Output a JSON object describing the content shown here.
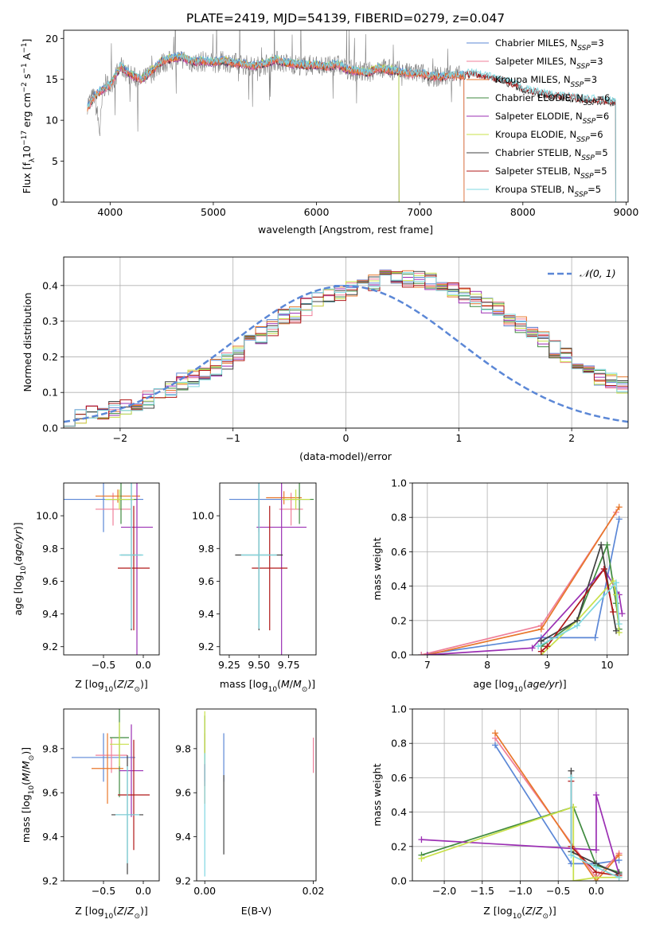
{
  "figure": {
    "title": "PLATE=2419, MJD=54139, FIBERID=0279, z=0.047"
  },
  "colors": {
    "Chabrier MILES": "#5b87d6",
    "Salpeter MILES": "#ef7f99",
    "Kroupa MILES": "#e8772b",
    "Chabrier ELODIE": "#3f8a3f",
    "Salpeter ELODIE": "#9b2fb3",
    "Kroupa ELODIE": "#c8e04a",
    "Chabrier STELIB": "#404040",
    "Salpeter STELIB": "#b01818",
    "Kroupa STELIB": "#7fd8e0"
  },
  "legend_spectrum": [
    {
      "model": "Chabrier MILES",
      "label": "Chabrier MILES, N",
      "sub": "SSP",
      "tail": "=3"
    },
    {
      "model": "Salpeter MILES",
      "label": "Salpeter MILES, N",
      "sub": "SSP",
      "tail": "=3"
    },
    {
      "model": "Kroupa MILES",
      "label": "Kroupa MILES, N",
      "sub": "SSP",
      "tail": "=3"
    },
    {
      "model": "Chabrier ELODIE",
      "label": "Chabrier ELODIE, N",
      "sub": "SSP",
      "tail": "=6"
    },
    {
      "model": "Salpeter ELODIE",
      "label": "Salpeter ELODIE, N",
      "sub": "SSP",
      "tail": "=6"
    },
    {
      "model": "Kroupa ELODIE",
      "label": "Kroupa ELODIE, N",
      "sub": "SSP",
      "tail": "=6"
    },
    {
      "model": "Chabrier STELIB",
      "label": "Chabrier STELIB, N",
      "sub": "SSP",
      "tail": "=5"
    },
    {
      "model": "Salpeter STELIB",
      "label": "Salpeter STELIB, N",
      "sub": "SSP",
      "tail": "=5"
    },
    {
      "model": "Kroupa STELIB",
      "label": "Kroupa STELIB, N",
      "sub": "SSP",
      "tail": "=5"
    }
  ],
  "chart_data": [
    {
      "id": "spectrum",
      "type": "line",
      "xlabel": "wavelength [Angstrom, rest frame]",
      "ylabel": "Flux [f_λ 10^-17 erg cm^-2 s^-1 A^-1]",
      "xlim": [
        3550,
        9020
      ],
      "ylim": [
        0,
        21
      ],
      "xticks": [
        4000,
        5000,
        6000,
        7000,
        8000,
        9000
      ],
      "yticks": [
        0,
        5,
        10,
        15,
        20
      ],
      "legend": "upper right",
      "data_series": {
        "name": "data",
        "color": "#808080",
        "x": [
          3780,
          3850,
          3900,
          3930,
          3960,
          4000,
          4100,
          4200,
          4300,
          4400,
          4500,
          4600,
          4700,
          4800,
          4900,
          5000,
          5100,
          5200,
          5300,
          5400,
          5500,
          5600,
          5700,
          5800,
          5900,
          6000,
          6100,
          6200,
          6300,
          6400,
          6500,
          6600,
          6700,
          6800,
          6900,
          7000,
          7100,
          7200,
          7300,
          7400
        ],
        "y": [
          12.0,
          13.0,
          8.5,
          13.5,
          14.5,
          14.2,
          16.5,
          15.5,
          14.8,
          15.8,
          17.0,
          17.3,
          17.5,
          17.0,
          17.2,
          17.0,
          17.2,
          17.0,
          16.8,
          16.5,
          16.8,
          17.3,
          17.0,
          16.8,
          16.7,
          16.8,
          16.5,
          16.8,
          16.2,
          16.0,
          15.8,
          16.5,
          16.2,
          16.0,
          15.7,
          15.8,
          15.4,
          15.3,
          15.5,
          15.4
        ]
      },
      "model_x": [
        3780,
        3850,
        3930,
        4000,
        4100,
        4200,
        4300,
        4400,
        4500,
        4600,
        4700,
        4800,
        4900,
        5000,
        5100,
        5200,
        5300,
        5400,
        5500,
        5600,
        5700,
        5800,
        5900,
        6000,
        6100,
        6200,
        6300,
        6400,
        6500,
        6600,
        6700,
        6800,
        6900,
        7000,
        7100,
        7200,
        7300,
        7400,
        7500,
        7600,
        7700,
        7800,
        7900,
        8000,
        8100,
        8200,
        8300,
        8400,
        8500,
        8600,
        8700,
        8800,
        8900
      ],
      "model_y": [
        11.5,
        13.0,
        13.8,
        14.3,
        16.6,
        15.6,
        15.0,
        16.0,
        17.2,
        17.6,
        17.8,
        17.1,
        17.3,
        17.1,
        17.3,
        17.0,
        16.9,
        16.6,
        16.9,
        17.4,
        17.0,
        16.9,
        16.7,
        16.8,
        16.5,
        16.9,
        16.2,
        16.0,
        15.8,
        16.4,
        16.1,
        16.0,
        15.7,
        15.8,
        15.4,
        15.3,
        15.5,
        15.4,
        15.8,
        15.5,
        15.2,
        14.9,
        14.5,
        13.9,
        13.5,
        13.3,
        13.0,
        12.9,
        12.8,
        12.6,
        12.5,
        12.4,
        12.3
      ],
      "model_ranges": {
        "Chabrier MILES": [
          3780,
          7430
        ],
        "Salpeter MILES": [
          3780,
          7430
        ],
        "Kroupa MILES": [
          3780,
          7430
        ],
        "Chabrier ELODIE": [
          3900,
          6800
        ],
        "Salpeter ELODIE": [
          3900,
          6800
        ],
        "Kroupa ELODIE": [
          3900,
          6800
        ],
        "Chabrier STELIB": [
          3780,
          8900
        ],
        "Salpeter STELIB": [
          3780,
          8900
        ],
        "Kroupa STELIB": [
          3780,
          8900
        ]
      },
      "model_order": [
        "Salpeter ELODIE",
        "Chabrier ELODIE",
        "Kroupa ELODIE",
        "Chabrier STELIB",
        "Salpeter STELIB",
        "Chabrier MILES",
        "Salpeter MILES",
        "Kroupa MILES",
        "Kroupa STELIB"
      ]
    },
    {
      "id": "residuals",
      "type": "histogram",
      "xlabel": "(data-model)/error",
      "ylabel": "Normed distribution",
      "xlim": [
        -2.5,
        2.5
      ],
      "ylim": [
        0,
        0.48
      ],
      "xticks": [
        -2,
        -1,
        0,
        1,
        2
      ],
      "yticks": [
        0.0,
        0.1,
        0.2,
        0.3,
        0.4
      ],
      "grid": true,
      "bin_width": 0.1,
      "bin_start": -2.5,
      "base_values": [
        0.03,
        0.03,
        0.04,
        0.04,
        0.05,
        0.06,
        0.06,
        0.08,
        0.09,
        0.11,
        0.13,
        0.14,
        0.15,
        0.17,
        0.19,
        0.21,
        0.24,
        0.26,
        0.28,
        0.31,
        0.32,
        0.34,
        0.36,
        0.37,
        0.38,
        0.39,
        0.4,
        0.41,
        0.42,
        0.42,
        0.42,
        0.42,
        0.41,
        0.4,
        0.39,
        0.37,
        0.36,
        0.34,
        0.33,
        0.31,
        0.29,
        0.27,
        0.25,
        0.22,
        0.2,
        0.18,
        0.16,
        0.14,
        0.13,
        0.12
      ],
      "reference": {
        "name": "𝒩(0, 1)",
        "mean": 0,
        "sigma": 1,
        "color": "#5b87d6"
      },
      "legend": "upper right"
    },
    {
      "id": "age_vs_Z",
      "type": "errorbar",
      "xlabel": "Z [log10(Z/Z⊙)]",
      "ylabel": "age [log10(age/yr)]",
      "xlim": [
        -1.0,
        0.2
      ],
      "ylim": [
        9.15,
        10.2
      ],
      "xticks": [
        -0.5,
        0.0
      ],
      "yticks": [
        9.2,
        9.4,
        9.6,
        9.8,
        10.0
      ],
      "points": [
        {
          "model": "Chabrier MILES",
          "x": -0.5,
          "xerr": 0.5,
          "y": 10.1,
          "yerr": 0.2
        },
        {
          "model": "Salpeter MILES",
          "x": -0.38,
          "xerr": 0.22,
          "y": 10.04,
          "yerr": 0.1
        },
        {
          "model": "Kroupa MILES",
          "x": -0.32,
          "xerr": 0.28,
          "y": 10.12,
          "yerr": 0.04
        },
        {
          "model": "Chabrier ELODIE",
          "x": -0.28,
          "xerr": 0.2,
          "y": 10.1,
          "yerr": 0.15
        },
        {
          "model": "Salpeter ELODIE",
          "x": -0.08,
          "xerr": 0.2,
          "y": 9.93,
          "yerr": 0.8
        },
        {
          "model": "Kroupa ELODIE",
          "x": -0.3,
          "xerr": 0.18,
          "y": 10.1,
          "yerr": 0.06
        },
        {
          "model": "Chabrier STELIB",
          "x": -0.15,
          "xerr": 0.13,
          "y": 9.76,
          "yerr": 0.46
        },
        {
          "model": "Salpeter STELIB",
          "x": -0.12,
          "xerr": 0.2,
          "y": 9.68,
          "yerr": 0.38
        },
        {
          "model": "Kroupa STELIB",
          "x": -0.15,
          "xerr": 0.15,
          "y": 9.76,
          "yerr": 0.45
        }
      ]
    },
    {
      "id": "age_vs_mass",
      "type": "errorbar",
      "xlabel": "mass [log10(M/M⊙)]",
      "ylabel": "",
      "xlim": [
        9.17,
        9.98
      ],
      "ylim": [
        9.15,
        10.2
      ],
      "xticks": [
        9.25,
        9.5,
        9.75
      ],
      "yticks": [
        9.2,
        9.4,
        9.6,
        9.8,
        10.0
      ],
      "points": [
        {
          "model": "Chabrier MILES",
          "x": 9.5,
          "xerr": 0.25,
          "y": 10.1,
          "yerr": 0.2
        },
        {
          "model": "Salpeter MILES",
          "x": 9.77,
          "xerr": 0.1,
          "y": 10.04,
          "yerr": 0.1
        },
        {
          "model": "Kroupa MILES",
          "x": 9.71,
          "xerr": 0.15,
          "y": 10.11,
          "yerr": 0.04
        },
        {
          "model": "Chabrier ELODIE",
          "x": 9.84,
          "xerr": 0.12,
          "y": 10.1,
          "yerr": 0.15
        },
        {
          "model": "Salpeter ELODIE",
          "x": 9.69,
          "xerr": 0.21,
          "y": 9.93,
          "yerr": 0.8
        },
        {
          "model": "Kroupa ELODIE",
          "x": 9.81,
          "xerr": 0.12,
          "y": 10.1,
          "yerr": 0.06
        },
        {
          "model": "Chabrier STELIB",
          "x": 9.5,
          "xerr": 0.2,
          "y": 9.76,
          "yerr": 0.46
        },
        {
          "model": "Salpeter STELIB",
          "x": 9.59,
          "xerr": 0.15,
          "y": 9.68,
          "yerr": 0.38
        },
        {
          "model": "Kroupa STELIB",
          "x": 9.5,
          "xerr": 0.15,
          "y": 9.76,
          "yerr": 0.45
        }
      ]
    },
    {
      "id": "mass_weight_vs_age",
      "type": "line",
      "xlabel": "age [log10(age/yr)]",
      "ylabel": "mass weight",
      "xlim": [
        6.75,
        10.35
      ],
      "ylim": [
        0,
        1.0
      ],
      "xticks": [
        7,
        8,
        9,
        10
      ],
      "yticks": [
        0.0,
        0.2,
        0.4,
        0.6,
        0.8,
        1.0
      ],
      "grid": true,
      "series": [
        {
          "model": "Chabrier MILES",
          "x": [
            6.9,
            8.9,
            9.8,
            10.2
          ],
          "y": [
            0.0,
            0.1,
            0.1,
            0.79
          ]
        },
        {
          "model": "Salpeter MILES",
          "x": [
            6.9,
            8.9,
            10.15
          ],
          "y": [
            0.0,
            0.17,
            0.83
          ]
        },
        {
          "model": "Kroupa MILES",
          "x": [
            7.0,
            8.9,
            10.2
          ],
          "y": [
            0.0,
            0.15,
            0.86
          ]
        },
        {
          "model": "Chabrier ELODIE",
          "x": [
            8.9,
            9.5,
            10.0,
            10.15,
            10.2
          ],
          "y": [
            0.05,
            0.2,
            0.64,
            0.3,
            0.15
          ]
        },
        {
          "model": "Salpeter ELODIE",
          "x": [
            7.0,
            8.75,
            9.95,
            10.2,
            10.25
          ],
          "y": [
            0.0,
            0.04,
            0.5,
            0.35,
            0.24
          ]
        },
        {
          "model": "Kroupa ELODIE",
          "x": [
            8.9,
            9.5,
            10.1,
            10.15,
            10.2
          ],
          "y": [
            0.0,
            0.2,
            0.43,
            0.35,
            0.13
          ]
        },
        {
          "model": "Chabrier STELIB",
          "x": [
            8.9,
            9.5,
            9.9,
            10.15
          ],
          "y": [
            0.08,
            0.2,
            0.64,
            0.14
          ]
        },
        {
          "model": "Salpeter STELIB",
          "x": [
            8.9,
            9.0,
            9.95,
            10.1
          ],
          "y": [
            0.02,
            0.05,
            0.5,
            0.25
          ]
        },
        {
          "model": "Kroupa STELIB",
          "x": [
            8.85,
            9.5,
            10.15,
            10.2
          ],
          "y": [
            0.05,
            0.17,
            0.42,
            0.18
          ]
        }
      ]
    },
    {
      "id": "mass_vs_Z",
      "type": "errorbar",
      "xlabel": "Z [log10(Z/Z⊙)]",
      "ylabel": "mass [log10(M/M⊙)]",
      "xlim": [
        -1.0,
        0.2
      ],
      "ylim": [
        9.2,
        9.98
      ],
      "xticks": [
        -0.5,
        0.0
      ],
      "yticks": [
        9.2,
        9.4,
        9.6,
        9.8
      ],
      "points": [
        {
          "model": "Chabrier MILES",
          "x": -0.5,
          "xerr": 0.4,
          "y": 9.76,
          "yerr": 0.11
        },
        {
          "model": "Salpeter MILES",
          "x": -0.4,
          "xerr": 0.2,
          "y": 9.77,
          "yerr": 0.08
        },
        {
          "model": "Kroupa MILES",
          "x": -0.45,
          "xerr": 0.2,
          "y": 9.71,
          "yerr": 0.16
        },
        {
          "model": "Chabrier ELODIE",
          "x": -0.3,
          "xerr": 0.12,
          "y": 9.85,
          "yerr": 0.27
        },
        {
          "model": "Salpeter ELODIE",
          "x": -0.15,
          "xerr": 0.15,
          "y": 9.7,
          "yerr": 0.21
        },
        {
          "model": "Kroupa ELODIE",
          "x": -0.3,
          "xerr": 0.12,
          "y": 9.82,
          "yerr": 0.1
        },
        {
          "model": "Chabrier STELIB",
          "x": -0.2,
          "xerr": 0.2,
          "y": 9.5,
          "yerr": 0.27
        },
        {
          "model": "Salpeter STELIB",
          "x": -0.12,
          "xerr": 0.2,
          "y": 9.59,
          "yerr": 0.25
        },
        {
          "model": "Kroupa STELIB",
          "x": -0.2,
          "xerr": 0.15,
          "y": 9.5,
          "yerr": 0.22
        }
      ]
    },
    {
      "id": "mass_vs_ebv",
      "type": "errorbar",
      "xlabel": "E(B-V)",
      "ylabel": "",
      "xlim": [
        -0.0015,
        0.0205
      ],
      "ylim": [
        9.2,
        9.98
      ],
      "xticks": [
        0.0,
        0.02
      ],
      "yticks": [
        9.2,
        9.4,
        9.6,
        9.8
      ],
      "points": [
        {
          "model": "Chabrier MILES",
          "x": 0.0035,
          "xerr": 0,
          "y": 9.76,
          "yerr": 0.11
        },
        {
          "model": "Salpeter MILES",
          "x": 0.02,
          "xerr": 0,
          "y": 9.77,
          "yerr": 0.08
        },
        {
          "model": "Kroupa MILES",
          "x": 0.0,
          "xerr": 0,
          "y": 9.71,
          "yerr": 0.16
        },
        {
          "model": "Chabrier ELODIE",
          "x": 0.0,
          "xerr": 0,
          "y": 9.85,
          "yerr": 0.1
        },
        {
          "model": "Salpeter ELODIE",
          "x": 0.0,
          "xerr": 0,
          "y": 9.7,
          "yerr": 0.05
        },
        {
          "model": "Kroupa ELODIE",
          "x": 0.0,
          "xerr": 0,
          "y": 9.85,
          "yerr": 0.12
        },
        {
          "model": "Chabrier STELIB",
          "x": 0.0035,
          "xerr": 0,
          "y": 9.5,
          "yerr": 0.18
        },
        {
          "model": "Salpeter STELIB",
          "x": 0.0,
          "xerr": 0,
          "y": 9.68,
          "yerr": 0.05
        },
        {
          "model": "Kroupa STELIB",
          "x": 0.0,
          "xerr": 0,
          "y": 9.5,
          "yerr": 0.28
        }
      ]
    },
    {
      "id": "mass_weight_vs_Z",
      "type": "line",
      "xlabel": "Z [log10(Z/Z⊙)]",
      "ylabel": "mass weight",
      "xlim": [
        -2.42,
        0.42
      ],
      "ylim": [
        0,
        1.0
      ],
      "xticks": [
        -2.0,
        -1.5,
        -1.0,
        -0.5,
        0.0
      ],
      "yticks": [
        0.0,
        0.2,
        0.4,
        0.6,
        0.8,
        1.0
      ],
      "grid": true,
      "series": [
        {
          "model": "Chabrier MILES",
          "x": [
            -1.33,
            -0.33,
            0.0,
            0.3
          ],
          "y": [
            0.79,
            0.1,
            0.1,
            0.12
          ]
        },
        {
          "model": "Salpeter MILES",
          "x": [
            -1.33,
            0.0,
            0.3
          ],
          "y": [
            0.83,
            0.02,
            0.16
          ]
        },
        {
          "model": "Kroupa MILES",
          "x": [
            -1.33,
            0.0,
            0.3
          ],
          "y": [
            0.86,
            0.0,
            0.15
          ]
        },
        {
          "model": "Chabrier ELODIE",
          "x": [
            -2.3,
            -0.3,
            0.0,
            0.3
          ],
          "y": [
            0.15,
            0.43,
            0.09,
            0.05
          ]
        },
        {
          "model": "Salpeter ELODIE",
          "x": [
            -2.3,
            0.0,
            0.0,
            0.3
          ],
          "y": [
            0.24,
            0.18,
            0.5,
            0.04
          ]
        },
        {
          "model": "Kroupa ELODIE",
          "x": [
            -2.3,
            -0.3,
            -0.3,
            0.0,
            0.3
          ],
          "y": [
            0.13,
            0.43,
            0.0,
            0.02,
            0.02
          ]
        },
        {
          "model": "Chabrier STELIB",
          "x": [
            -0.33,
            -0.33,
            0.0,
            0.3
          ],
          "y": [
            0.64,
            0.17,
            0.1,
            0.04
          ]
        },
        {
          "model": "Salpeter STELIB",
          "x": [
            -0.33,
            -0.33,
            0.0,
            0.3
          ],
          "y": [
            0.58,
            0.2,
            0.05,
            0.03
          ]
        },
        {
          "model": "Kroupa STELIB",
          "x": [
            -0.33,
            -0.33,
            0.0,
            0.3
          ],
          "y": [
            0.6,
            0.15,
            0.08,
            0.02
          ]
        }
      ]
    }
  ]
}
